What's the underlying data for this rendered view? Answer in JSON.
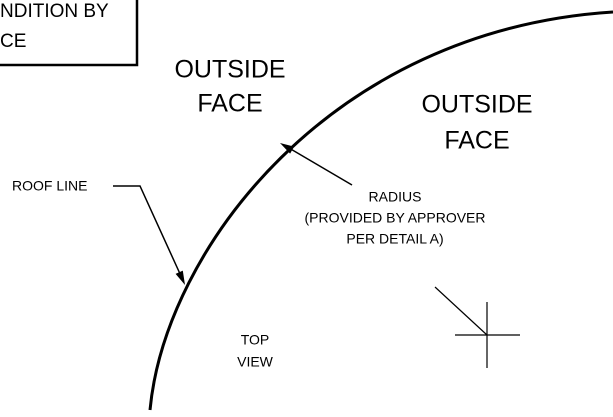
{
  "note_box": {
    "lines": [
      "NDITION BY",
      "CE"
    ]
  },
  "outside_face_left": {
    "lines": [
      "OUTSIDE",
      "FACE"
    ]
  },
  "outside_face_right": {
    "lines": [
      "OUTSIDE",
      "FACE"
    ]
  },
  "roof_line_label": "ROOF LINE",
  "radius_label": {
    "lines": [
      "RADIUS",
      "(PROVIDED BY APPROVER",
      "PER DETAIL A)"
    ]
  },
  "view_label": {
    "lines": [
      "TOP",
      "VIEW"
    ]
  }
}
